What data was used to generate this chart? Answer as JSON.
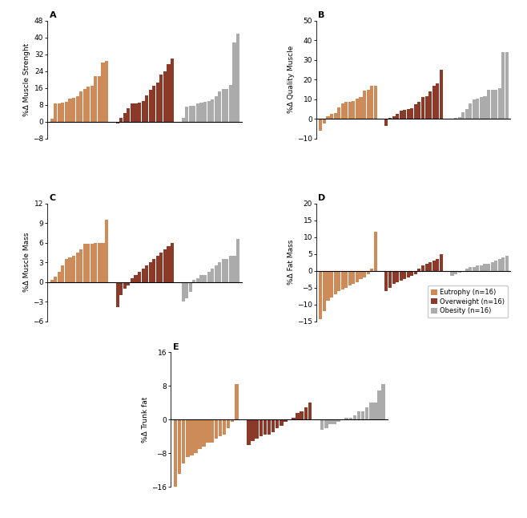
{
  "colors": {
    "eutrophy": "#CD8B5A",
    "overweight": "#8B3A2A",
    "obesity": "#ABABAB"
  },
  "panel_A": {
    "label": "%Δ Muscle Strenght",
    "eutrophy": [
      1.5,
      8.5,
      8.5,
      9.0,
      9.5,
      11.0,
      11.5,
      12.0,
      14.5,
      15.5,
      16.5,
      17.0,
      21.5,
      21.5,
      28.0,
      29.0
    ],
    "overweight": [
      -1.0,
      2.0,
      4.0,
      6.5,
      8.5,
      8.5,
      9.0,
      10.0,
      12.5,
      15.0,
      17.0,
      18.5,
      22.5,
      24.0,
      27.5,
      30.0
    ],
    "obesity": [
      2.0,
      7.0,
      7.5,
      7.5,
      8.5,
      9.0,
      9.5,
      10.0,
      10.5,
      12.0,
      14.5,
      15.5,
      15.5,
      17.5,
      37.5,
      42.0
    ],
    "ylim": [
      -8,
      48
    ],
    "yticks": [
      -8,
      0,
      8,
      16,
      24,
      32,
      40,
      48
    ]
  },
  "panel_B": {
    "label": "%Δ Quality Muscle",
    "eutrophy": [
      -6.0,
      -2.5,
      1.5,
      2.5,
      3.0,
      6.0,
      8.0,
      8.5,
      8.5,
      9.0,
      10.5,
      11.0,
      14.5,
      15.0,
      17.0,
      17.0
    ],
    "overweight": [
      -3.5,
      0.5,
      1.5,
      2.5,
      4.0,
      4.5,
      5.0,
      5.5,
      7.5,
      8.5,
      11.0,
      11.5,
      14.0,
      17.0,
      18.0,
      25.0
    ],
    "obesity": [
      0.0,
      0.5,
      1.0,
      3.5,
      5.0,
      8.0,
      10.0,
      10.5,
      11.0,
      11.5,
      15.0,
      15.0,
      15.0,
      15.5,
      34.0,
      34.0
    ],
    "ylim": [
      -10,
      50
    ],
    "yticks": [
      -10,
      0,
      10,
      20,
      30,
      40,
      50
    ]
  },
  "panel_C": {
    "label": "%Δ Muscle Mass",
    "eutrophy": [
      0.3,
      0.8,
      1.5,
      2.5,
      3.5,
      3.8,
      4.0,
      4.5,
      5.0,
      5.8,
      5.8,
      5.8,
      6.0,
      6.0,
      6.0,
      9.5
    ],
    "overweight": [
      -3.8,
      -2.0,
      -1.0,
      -0.5,
      0.5,
      1.0,
      1.5,
      2.0,
      2.5,
      3.0,
      3.5,
      4.0,
      4.5,
      5.0,
      5.5,
      6.0
    ],
    "obesity": [
      -3.0,
      -2.5,
      -1.5,
      0.3,
      0.5,
      1.0,
      1.0,
      1.5,
      2.0,
      2.5,
      3.0,
      3.5,
      3.5,
      4.0,
      4.0,
      6.5
    ],
    "ylim": [
      -6,
      12
    ],
    "yticks": [
      -6,
      -3,
      0,
      3,
      6,
      9,
      12
    ]
  },
  "panel_D": {
    "label": "%Δ Fat Mass",
    "eutrophy": [
      -14.5,
      -12.0,
      -9.0,
      -8.0,
      -7.0,
      -6.0,
      -5.5,
      -5.0,
      -4.5,
      -4.0,
      -3.5,
      -2.5,
      -2.0,
      -1.0,
      0.5,
      11.5
    ],
    "overweight": [
      -6.0,
      -5.0,
      -4.0,
      -3.5,
      -3.0,
      -2.5,
      -2.0,
      -1.5,
      -1.0,
      0.5,
      1.5,
      2.0,
      2.5,
      3.0,
      3.5,
      5.0
    ],
    "obesity": [
      -1.5,
      -1.0,
      -0.5,
      0.0,
      0.5,
      1.0,
      1.0,
      1.5,
      1.5,
      2.0,
      2.0,
      2.5,
      3.0,
      3.5,
      4.0,
      4.5
    ],
    "ylim": [
      -15,
      20
    ],
    "yticks": [
      -15,
      -10,
      -5,
      0,
      5,
      10,
      15,
      20
    ]
  },
  "panel_E": {
    "label": "%Δ Trunk fat",
    "eutrophy": [
      -16.0,
      -13.0,
      -10.5,
      -9.0,
      -8.5,
      -8.0,
      -7.0,
      -6.5,
      -5.5,
      -5.5,
      -4.5,
      -4.0,
      -3.5,
      -2.0,
      -0.5,
      8.5
    ],
    "overweight": [
      -6.0,
      -5.0,
      -4.5,
      -4.0,
      -3.5,
      -3.5,
      -3.0,
      -2.0,
      -1.5,
      -0.5,
      0.0,
      0.5,
      1.5,
      2.0,
      3.0,
      4.0
    ],
    "obesity": [
      -2.5,
      -2.0,
      -1.0,
      -1.0,
      -0.5,
      0.0,
      0.5,
      0.5,
      1.0,
      2.0,
      2.0,
      3.0,
      4.0,
      4.0,
      7.0,
      8.5
    ],
    "ylim": [
      -16,
      16
    ],
    "yticks": [
      -16,
      -8,
      0,
      8,
      16
    ]
  },
  "legend": {
    "eutrophy": "Eutrophy (n=16)",
    "overweight": "Overweight (n=16)",
    "obesity": "Obesity (n=16)"
  }
}
